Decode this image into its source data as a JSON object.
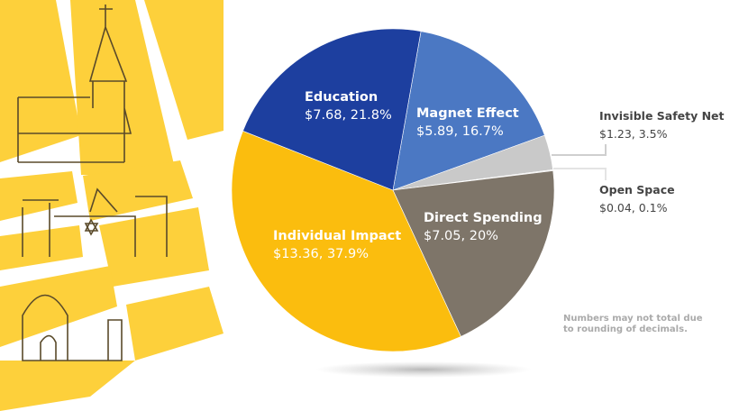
{
  "chart_data": {
    "type": "pie",
    "slices": [
      {
        "name": "Education",
        "value": 7.68,
        "percent": 21.8,
        "value_label": "$7.68, 21.8%",
        "color": "#1d3f9f"
      },
      {
        "name": "Magnet Effect",
        "value": 5.89,
        "percent": 16.7,
        "value_label": "$5.89, 16.7%",
        "color": "#4b78c3"
      },
      {
        "name": "Invisible Safety Net",
        "value": 1.23,
        "percent": 3.5,
        "value_label": "$1.23, 3.5%",
        "color": "#c9c9c9"
      },
      {
        "name": "Open Space",
        "value": 0.04,
        "percent": 0.1,
        "value_label": "$0.04, 0.1%",
        "color": "#e6e6e6"
      },
      {
        "name": "Direct Spending",
        "value": 7.05,
        "percent": 20,
        "value_label": "$7.05, 20%",
        "color": "#7e7569"
      },
      {
        "name": "Individual Impact",
        "value": 13.36,
        "percent": 37.9,
        "value_label": "$13.36, 37.9%",
        "color": "#fbbd0e"
      }
    ],
    "note": [
      "Numbers may not total due",
      "to rounding of decimals."
    ]
  },
  "colors": {
    "illustration_yellow": "#fdd03b",
    "sketch": "#5a4a2a",
    "callout_line": "#cfcfcf"
  }
}
